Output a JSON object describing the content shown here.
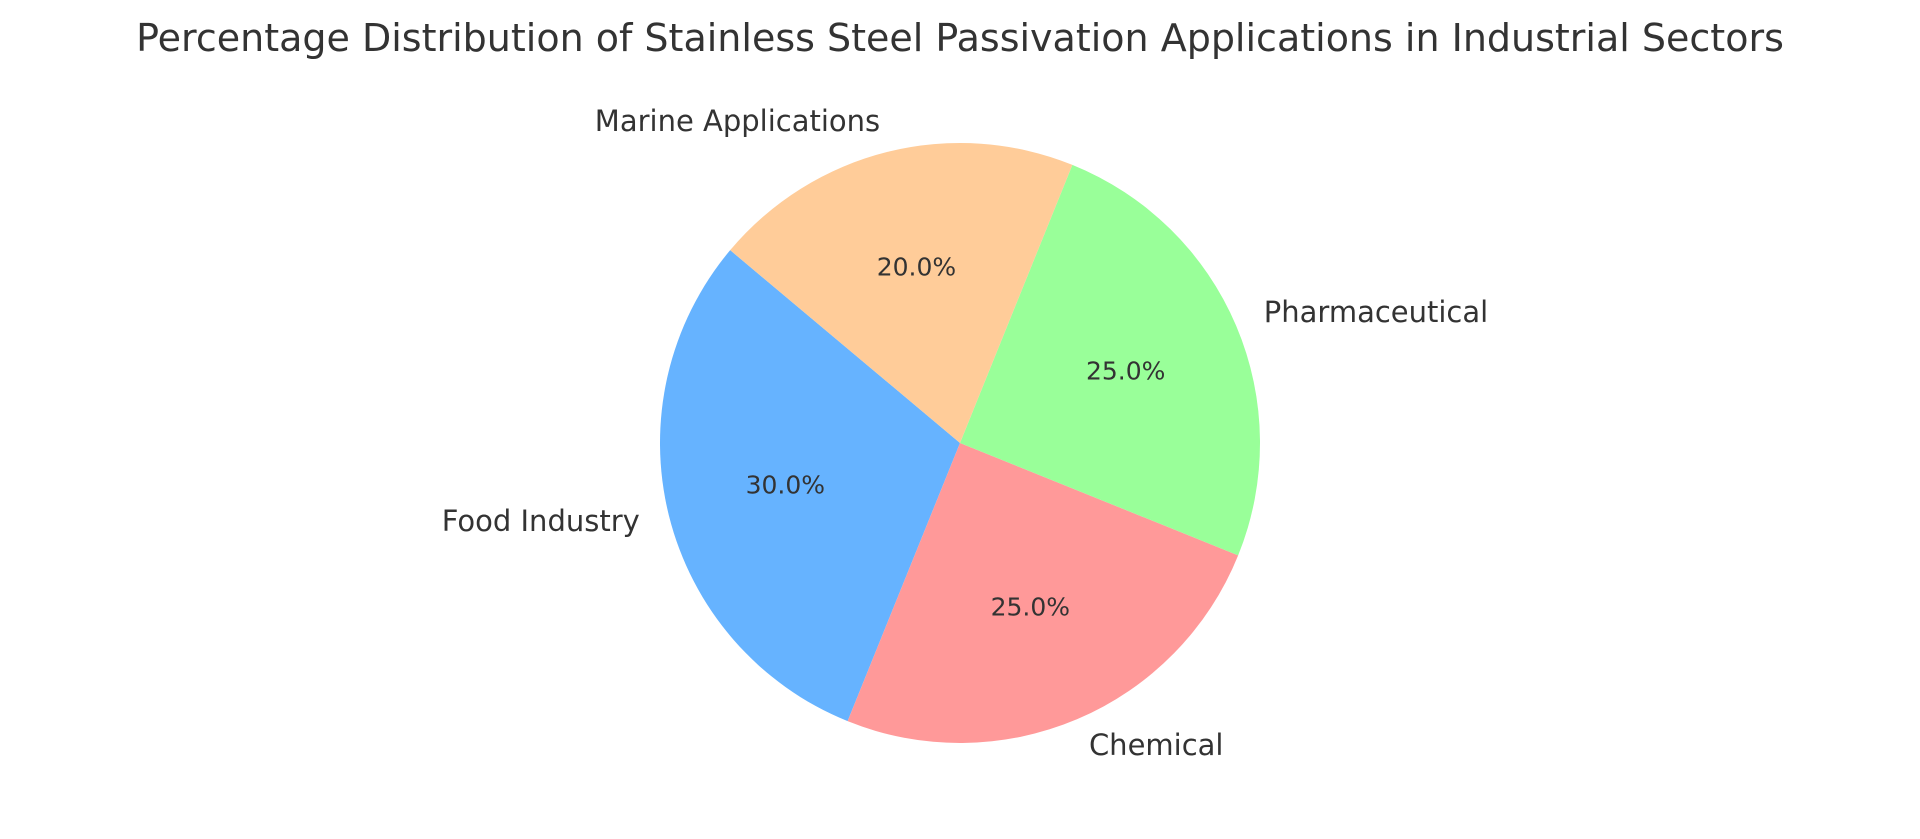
{
  "chart_data": {
    "type": "pie",
    "title": "Percentage Distribution of Stainless Steel Passivation Applications in Industrial Sectors",
    "slices": [
      {
        "label": "Food Industry",
        "value": 30.0,
        "pct_label": "30.0%",
        "color": "#66b3ff"
      },
      {
        "label": "Chemical",
        "value": 25.0,
        "pct_label": "25.0%",
        "color": "#ff9999"
      },
      {
        "label": "Pharmaceutical",
        "value": 25.0,
        "pct_label": "25.0%",
        "color": "#99ff99"
      },
      {
        "label": "Marine Applications",
        "value": 20.0,
        "pct_label": "20.0%",
        "color": "#ffcc99"
      }
    ],
    "start_angle": 140,
    "direction": "counterclockwise",
    "legend": "none"
  }
}
